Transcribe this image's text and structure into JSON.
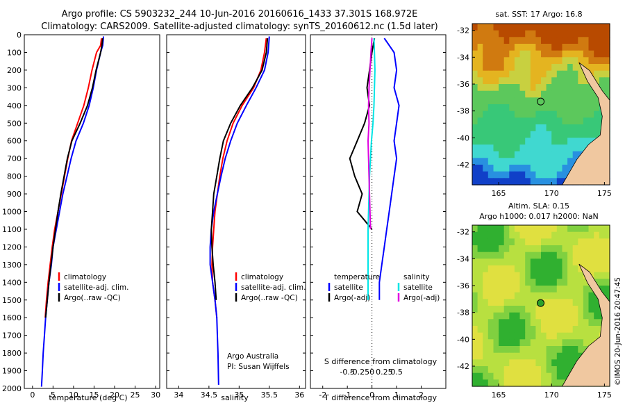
{
  "header": {
    "title_line1": "Argo profile: CS 5903232_244 10-Jun-2016 20160616_1433 37.301S 168.972E",
    "title_line2": "Climatology: CARS2009. Satellite-adjusted climatology: synTS_20160612.nc (1.5d later)"
  },
  "credit": {
    "line1": "Argo Australia",
    "line2": "PI: Susan Wijffels"
  },
  "stamp": "©IMOS 20-Jun-2016 20:47:45",
  "colors": {
    "climatology": "#ff0000",
    "satellite": "#0000ff",
    "argo": "#000000",
    "sal_satellite": "#00e5e5",
    "sal_argo": "#e000e0",
    "land": "#f0c8a0"
  },
  "chart_data": [
    {
      "type": "line",
      "xlabel": "temperature (deg C)",
      "xlim": [
        -2,
        31
      ],
      "xticks": [
        0,
        5,
        10,
        15,
        20,
        25,
        30
      ],
      "ylim": [
        2000,
        0
      ],
      "yticks": [
        0,
        100,
        200,
        300,
        400,
        500,
        600,
        700,
        800,
        900,
        1000,
        1100,
        1200,
        1300,
        1400,
        1500,
        1600,
        1700,
        1800,
        1900,
        2000
      ],
      "legend_placement": "lower-left",
      "series": [
        {
          "name": "climatology",
          "color": "#ff0000",
          "x": [
            16.8,
            16.6,
            15.6,
            14.5,
            13.6,
            12.5,
            11.0,
            9.5,
            8.6,
            7.8,
            7.0,
            6.2,
            5.4,
            4.8,
            4.3,
            3.8,
            3.4,
            3.1
          ],
          "y": [
            20,
            60,
            100,
            200,
            300,
            400,
            500,
            600,
            700,
            800,
            900,
            1000,
            1100,
            1200,
            1300,
            1400,
            1500,
            1600
          ]
        },
        {
          "name": "satellite-adj. clim.",
          "color": "#0000ff",
          "x": [
            17.3,
            17.1,
            16.6,
            15.6,
            14.8,
            13.8,
            12.4,
            10.6,
            9.4,
            8.4,
            7.4,
            6.6,
            5.8,
            5.0,
            4.6,
            4.0,
            3.6,
            3.2,
            2.9,
            2.6,
            2.4,
            2.2
          ],
          "y": [
            10,
            60,
            100,
            200,
            300,
            400,
            500,
            600,
            700,
            800,
            900,
            1000,
            1100,
            1200,
            1300,
            1400,
            1500,
            1600,
            1700,
            1800,
            1900,
            1990
          ]
        },
        {
          "name": "Argo(..raw -QC)",
          "color": "#000000",
          "x": [
            17.1,
            16.9,
            16.6,
            15.5,
            14.6,
            13.4,
            11.6,
            9.6,
            8.5,
            7.7,
            6.9,
            6.2,
            5.6,
            5.0,
            4.5,
            4.0,
            3.6,
            3.2
          ],
          "y": [
            20,
            60,
            100,
            200,
            300,
            400,
            500,
            600,
            700,
            800,
            900,
            1000,
            1100,
            1200,
            1300,
            1400,
            1500,
            1600
          ]
        }
      ]
    },
    {
      "type": "line",
      "xlabel": "salinity",
      "xlim": [
        33.8,
        36.1
      ],
      "xticks": [
        34,
        34.5,
        35,
        35.5,
        36
      ],
      "ylim": [
        2000,
        0
      ],
      "legend_placement": "lower-right",
      "series": [
        {
          "name": "climatology",
          "color": "#ff0000",
          "x": [
            35.45,
            35.42,
            35.36,
            35.24,
            35.05,
            34.9,
            34.8,
            34.73,
            34.68,
            34.64,
            34.6,
            34.58,
            34.56,
            34.55,
            34.56,
            34.6,
            34.63
          ],
          "y": [
            20,
            100,
            200,
            300,
            400,
            500,
            600,
            700,
            800,
            900,
            1000,
            1100,
            1200,
            1300,
            1400,
            1500,
            1600
          ]
        },
        {
          "name": "satellite-adj. clim.",
          "color": "#0000ff",
          "x": [
            35.5,
            35.48,
            35.42,
            35.28,
            35.12,
            34.97,
            34.86,
            34.77,
            34.7,
            34.64,
            34.58,
            34.54,
            34.52,
            34.52,
            34.56,
            34.6,
            34.63,
            34.64,
            34.65,
            34.66
          ],
          "y": [
            10,
            100,
            200,
            300,
            400,
            500,
            600,
            700,
            800,
            900,
            1000,
            1100,
            1200,
            1300,
            1400,
            1500,
            1600,
            1700,
            1800,
            1980
          ]
        },
        {
          "name": "Argo(..raw -QC)",
          "color": "#000000",
          "x": [
            35.47,
            35.45,
            35.38,
            35.22,
            35.02,
            34.86,
            34.74,
            34.68,
            34.63,
            34.58,
            34.56,
            34.54,
            34.55,
            34.57,
            34.6,
            34.62
          ],
          "y": [
            20,
            100,
            200,
            300,
            400,
            500,
            600,
            700,
            800,
            900,
            1000,
            1100,
            1200,
            1300,
            1400,
            1500
          ]
        }
      ]
    },
    {
      "type": "line",
      "xlabel": "T difference from climatology",
      "xlabel_top": "S difference from climatology",
      "xlim": [
        -2.5,
        3.0
      ],
      "xticks": [
        -2,
        -1,
        0,
        1,
        2
      ],
      "sticks": [
        -0.5,
        -0.25,
        0,
        0.25,
        0.5
      ],
      "ylim": [
        2000,
        0
      ],
      "legend_temperature_title": "temperature",
      "legend_salinity_title": "salinity",
      "series": [
        {
          "name": "satellite",
          "group": "temperature",
          "color": "#0000ff",
          "x": [
            0.5,
            0.7,
            0.9,
            1.0,
            0.9,
            1.1,
            1.0,
            0.9,
            1.0,
            0.9,
            0.8,
            0.7,
            0.6,
            0.5,
            0.4,
            0.3,
            0.3
          ],
          "y": [
            20,
            60,
            100,
            200,
            300,
            400,
            500,
            600,
            700,
            800,
            900,
            1000,
            1100,
            1200,
            1300,
            1400,
            1500
          ]
        },
        {
          "name": "Argo(-adj)",
          "group": "temperature",
          "color": "#000000",
          "x": [
            0.1,
            0.0,
            -0.1,
            -0.2,
            -0.1,
            -0.3,
            -0.6,
            -0.9,
            -0.7,
            -0.4,
            -0.6,
            -0.3,
            0.0
          ],
          "y": [
            20,
            100,
            200,
            300,
            400,
            500,
            600,
            700,
            800,
            900,
            1000,
            1050,
            1100
          ]
        },
        {
          "name": "satellite",
          "group": "salinity",
          "color": "#00e5e5",
          "x": [
            0.04,
            0.05,
            0.06,
            0.05,
            0.04,
            0.02,
            -0.01,
            -0.03,
            -0.05,
            -0.06,
            -0.07,
            -0.08,
            -0.08
          ],
          "y": [
            20,
            100,
            200,
            300,
            400,
            500,
            600,
            700,
            800,
            900,
            1000,
            1100,
            1500
          ]
        },
        {
          "name": "Argo(-adj)",
          "group": "salinity",
          "color": "#e000e0",
          "x": [
            0.0,
            -0.02,
            -0.04,
            -0.06,
            -0.07,
            -0.06,
            -0.08,
            -0.07,
            -0.06,
            -0.05,
            -0.04,
            -0.03
          ],
          "y": [
            20,
            100,
            200,
            300,
            400,
            500,
            600,
            700,
            800,
            900,
            1000,
            1100
          ]
        }
      ]
    },
    {
      "type": "heatmap",
      "title": "sat. SST: 17 Argo: 16.8",
      "xlim": [
        162.5,
        175.5
      ],
      "ylim": [
        -43.5,
        -31.5
      ],
      "xticks": [
        165,
        170,
        175
      ],
      "yticks": [
        -32,
        -34,
        -36,
        -38,
        -40,
        -42
      ],
      "marker": {
        "lon": 168.97,
        "lat": -37.3
      }
    },
    {
      "type": "heatmap",
      "title_line1": "Altim. SLA: 0.15",
      "title_line2": "Argo h1000: 0.017 h2000: NaN",
      "xlim": [
        162.5,
        175.5
      ],
      "ylim": [
        -43.5,
        -31.5
      ],
      "xticks": [
        165,
        170,
        175
      ],
      "yticks": [
        -32,
        -34,
        -36,
        -38,
        -40,
        -42
      ],
      "marker": {
        "lon": 168.97,
        "lat": -37.3
      }
    }
  ]
}
